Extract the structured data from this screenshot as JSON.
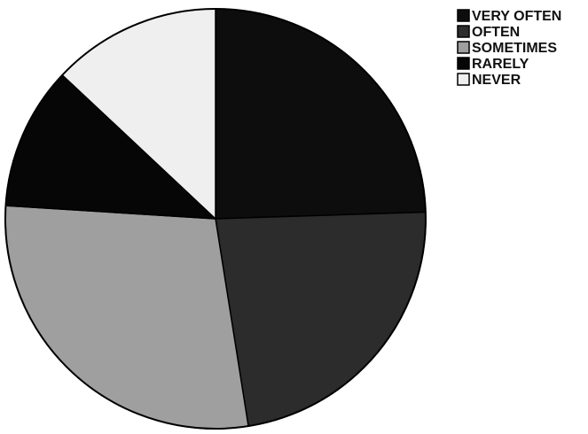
{
  "chart_data": {
    "type": "pie",
    "title": "",
    "categories": [
      "VERY OFTEN",
      "OFTEN",
      "SOMETIMES",
      "RARELY",
      "NEVER"
    ],
    "values": [
      24.5,
      23,
      28.5,
      11,
      13
    ],
    "unit": "%",
    "start_angle_deg": 0,
    "direction": "clockwise",
    "colors": [
      "#0d0d0d",
      "#2c2c2c",
      "#9f9f9f",
      "#060606",
      "#efefef"
    ],
    "slice_stroke": "#000000",
    "legend": {
      "position": "top-right",
      "entries": [
        "VERY OFTEN",
        "OFTEN",
        "SOMETIMES",
        "RARELY",
        "NEVER"
      ]
    }
  }
}
